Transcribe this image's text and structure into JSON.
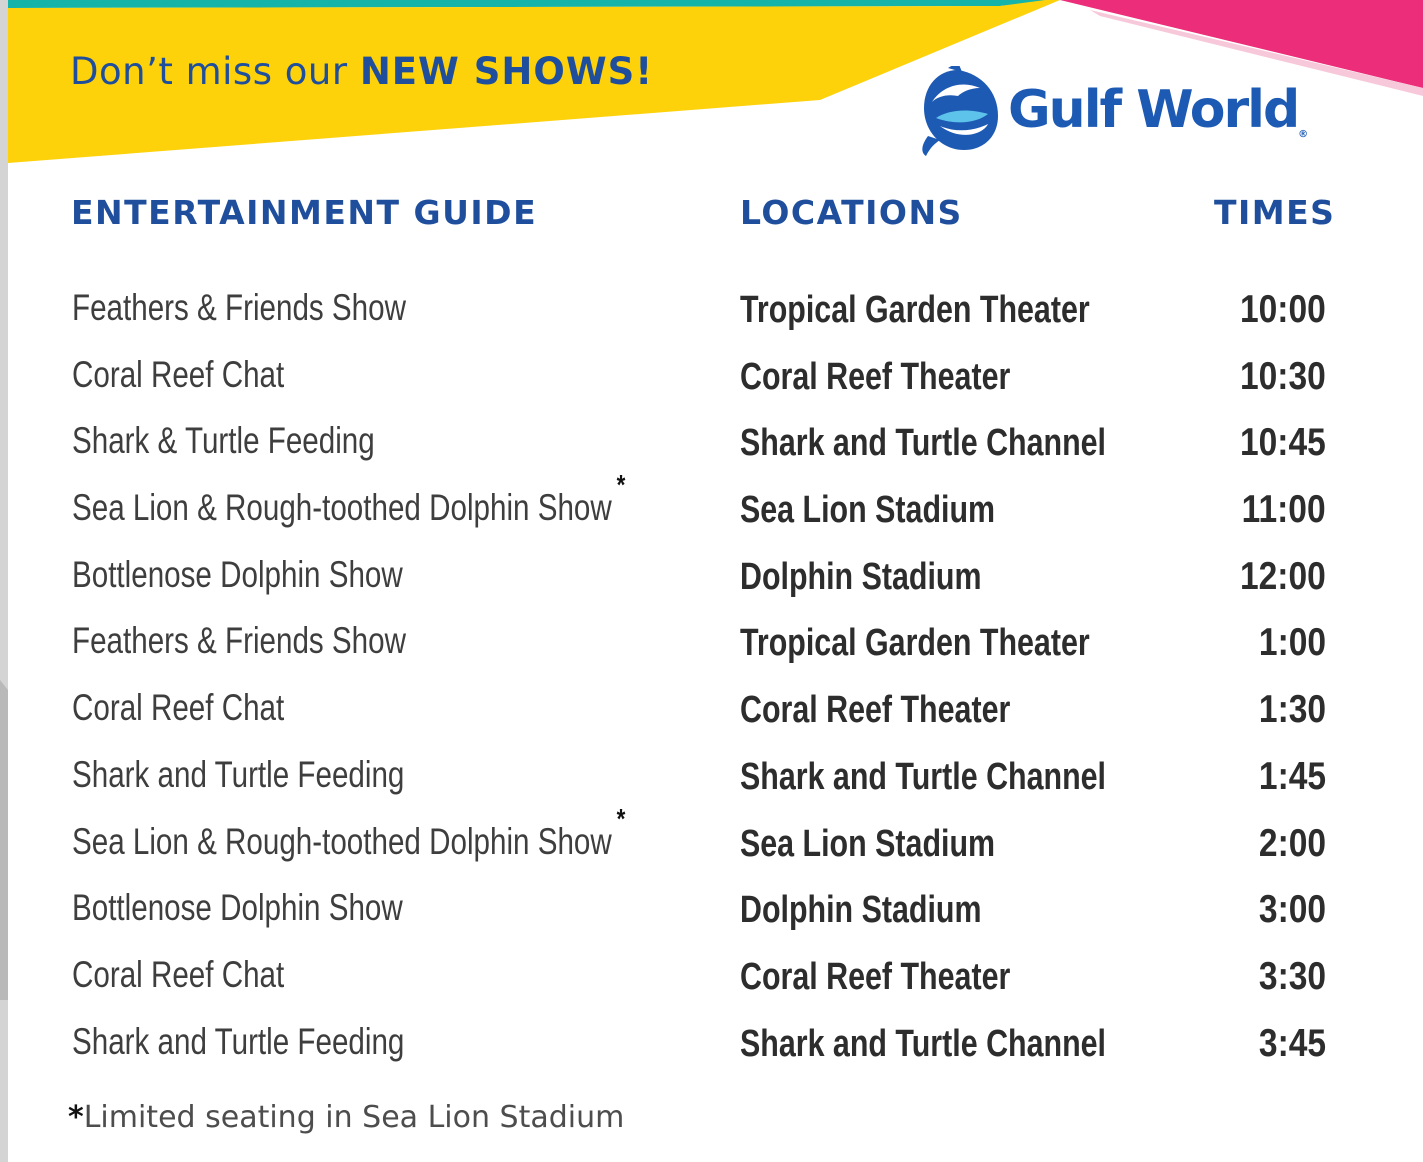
{
  "banner": {
    "tagline_prefix": "Don’t miss our",
    "tagline_emphasis": "NEW SHOWS!"
  },
  "logo": {
    "name": "Gulf World",
    "registered_mark": "®",
    "icon": "dolphin-logo-icon"
  },
  "headers": {
    "guide": "ENTERTAINMENT GUIDE",
    "locations": "LOCATIONS",
    "times": "TIMES"
  },
  "schedule": [
    {
      "show": "Feathers & Friends Show",
      "asterisk": "",
      "location": "Tropical Garden Theater",
      "time": "10:00"
    },
    {
      "show": "Coral Reef Chat",
      "asterisk": "",
      "location": "Coral Reef Theater",
      "time": "10:30"
    },
    {
      "show": "Shark & Turtle Feeding",
      "asterisk": "",
      "location": "Shark and Turtle Channel",
      "time": "10:45"
    },
    {
      "show": "Sea Lion & Rough-toothed Dolphin Show",
      "asterisk": "*",
      "location": "Sea Lion Stadium",
      "time": "11:00"
    },
    {
      "show": "Bottlenose Dolphin Show",
      "asterisk": "",
      "location": "Dolphin Stadium",
      "time": "12:00"
    },
    {
      "show": "Feathers & Friends Show",
      "asterisk": "",
      "location": "Tropical Garden Theater",
      "time": "1:00"
    },
    {
      "show": "Coral Reef Chat",
      "asterisk": "",
      "location": "Coral Reef Theater",
      "time": "1:30"
    },
    {
      "show": "Shark and Turtle Feeding",
      "asterisk": "",
      "location": "Shark and Turtle Channel",
      "time": "1:45"
    },
    {
      "show": "Sea Lion & Rough-toothed Dolphin Show",
      "asterisk": "*",
      "location": "Sea Lion Stadium",
      "time": "2:00"
    },
    {
      "show": "Bottlenose Dolphin Show",
      "asterisk": "",
      "location": "Dolphin Stadium",
      "time": "3:00"
    },
    {
      "show": "Coral Reef Chat",
      "asterisk": "",
      "location": "Coral Reef Theater",
      "time": "3:30"
    },
    {
      "show": "Shark and Turtle Feeding",
      "asterisk": "",
      "location": "Shark and Turtle Channel",
      "time": "3:45"
    }
  ],
  "footnote": {
    "asterisk": "*",
    "text": "Limited seating in Sea Lion Stadium"
  },
  "colors": {
    "banner_yellow": "#fdd20a",
    "teal_stripe": "#16b3a8",
    "pink_accent": "#ec2d7a",
    "heading_blue": "#1f4f9c",
    "logo_blue": "#1d5ab3"
  }
}
